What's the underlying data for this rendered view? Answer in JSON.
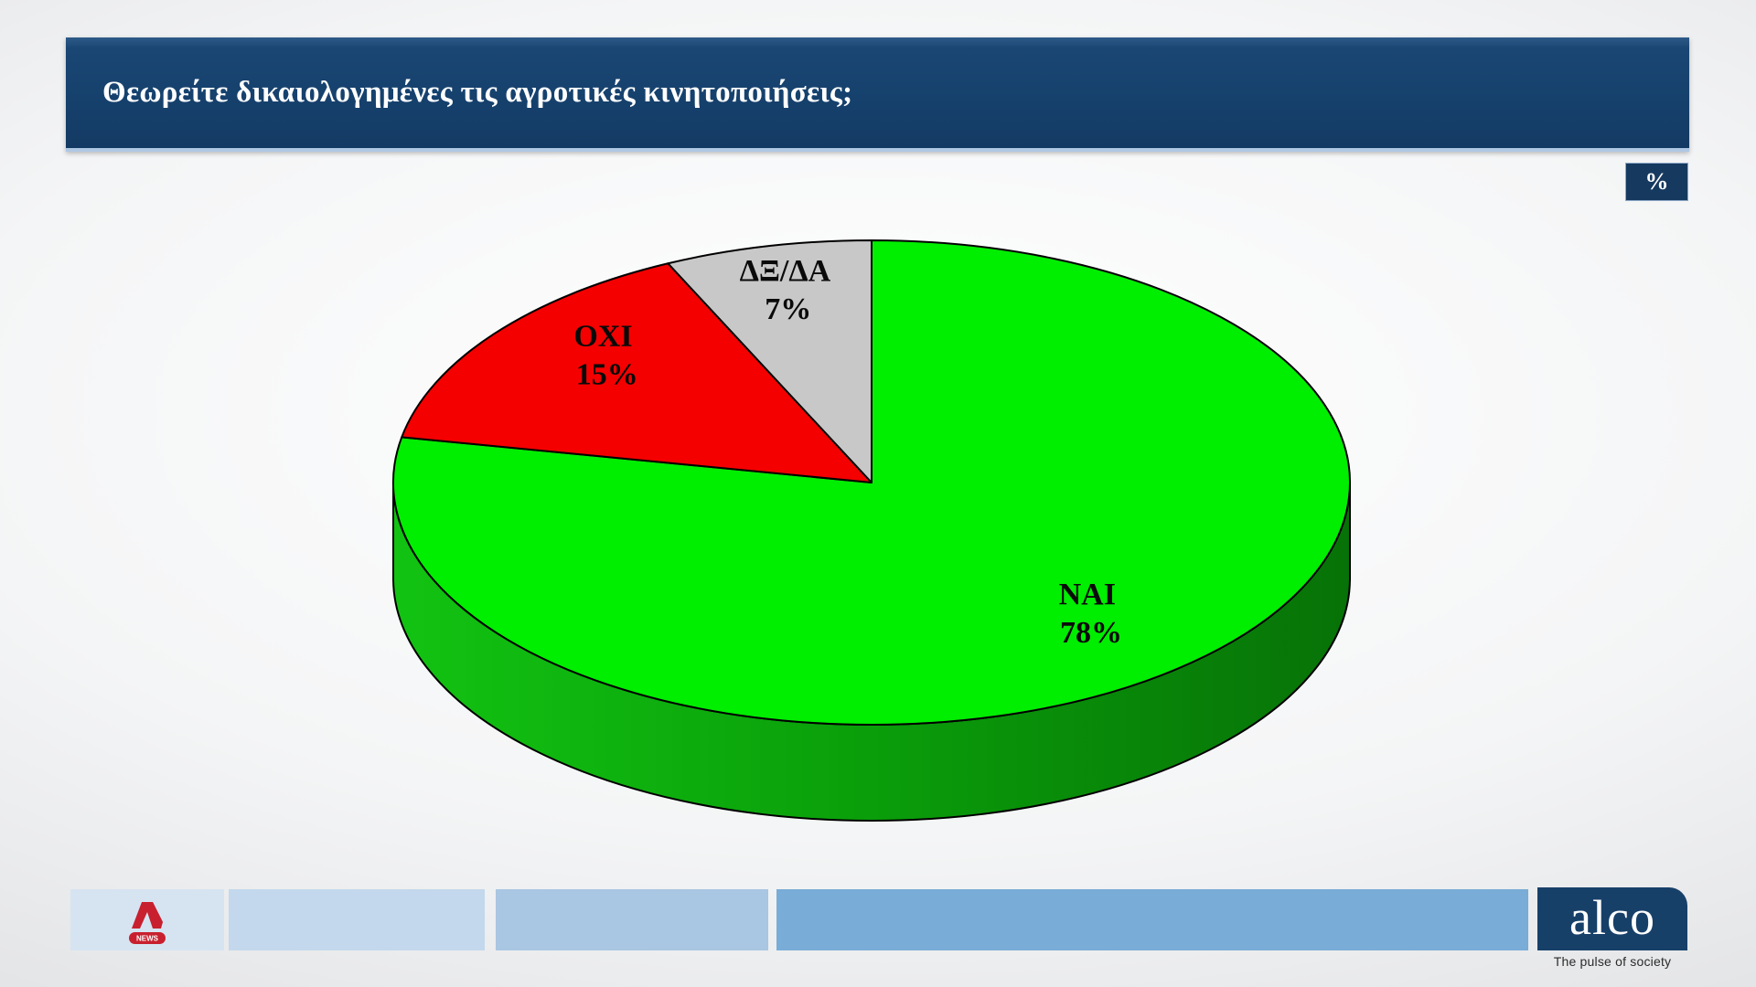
{
  "header": {
    "title": "Θεωρείτε δικαιολογημένες τις αγροτικές κινητοποιήσεις;",
    "unit_badge": "%"
  },
  "chart_data": {
    "type": "pie",
    "title": "Θεωρείτε δικαιολογημένες τις αγροτικές κινητοποιήσεις;",
    "three_d": true,
    "start_angle_deg": 0,
    "direction": "clockwise",
    "value_suffix": "%",
    "slices": [
      {
        "label": "ΝΑΙ",
        "value": 78,
        "color": "#00ee00",
        "label_r": 0.72,
        "label_dy": 0
      },
      {
        "label": "ΟΧΙ",
        "value": 15,
        "color": "#f40000",
        "label_r": 0.7,
        "label_dy": -22
      },
      {
        "label": "ΔΞ/ΔΑ",
        "value": 7,
        "color": "#c8c8c8",
        "label_r": 0.8,
        "label_dy": 0
      }
    ],
    "outline_color": "#000000",
    "label_color": "#0a0a0a",
    "side_gradient": [
      "#12c312",
      "#0a9e0a",
      "#077207"
    ]
  },
  "footer": {
    "alpha_logo": {
      "news_label": "NEWS",
      "color": "#c8202f"
    },
    "bars": [
      {
        "color": "#d6e4f2"
      },
      {
        "color": "#c3d8ec"
      },
      {
        "color": "#a9c6e2"
      },
      {
        "color": "#79acd6"
      }
    ],
    "alco": {
      "name": "alco",
      "tagline": "The pulse of society",
      "bg": "#174069"
    }
  }
}
